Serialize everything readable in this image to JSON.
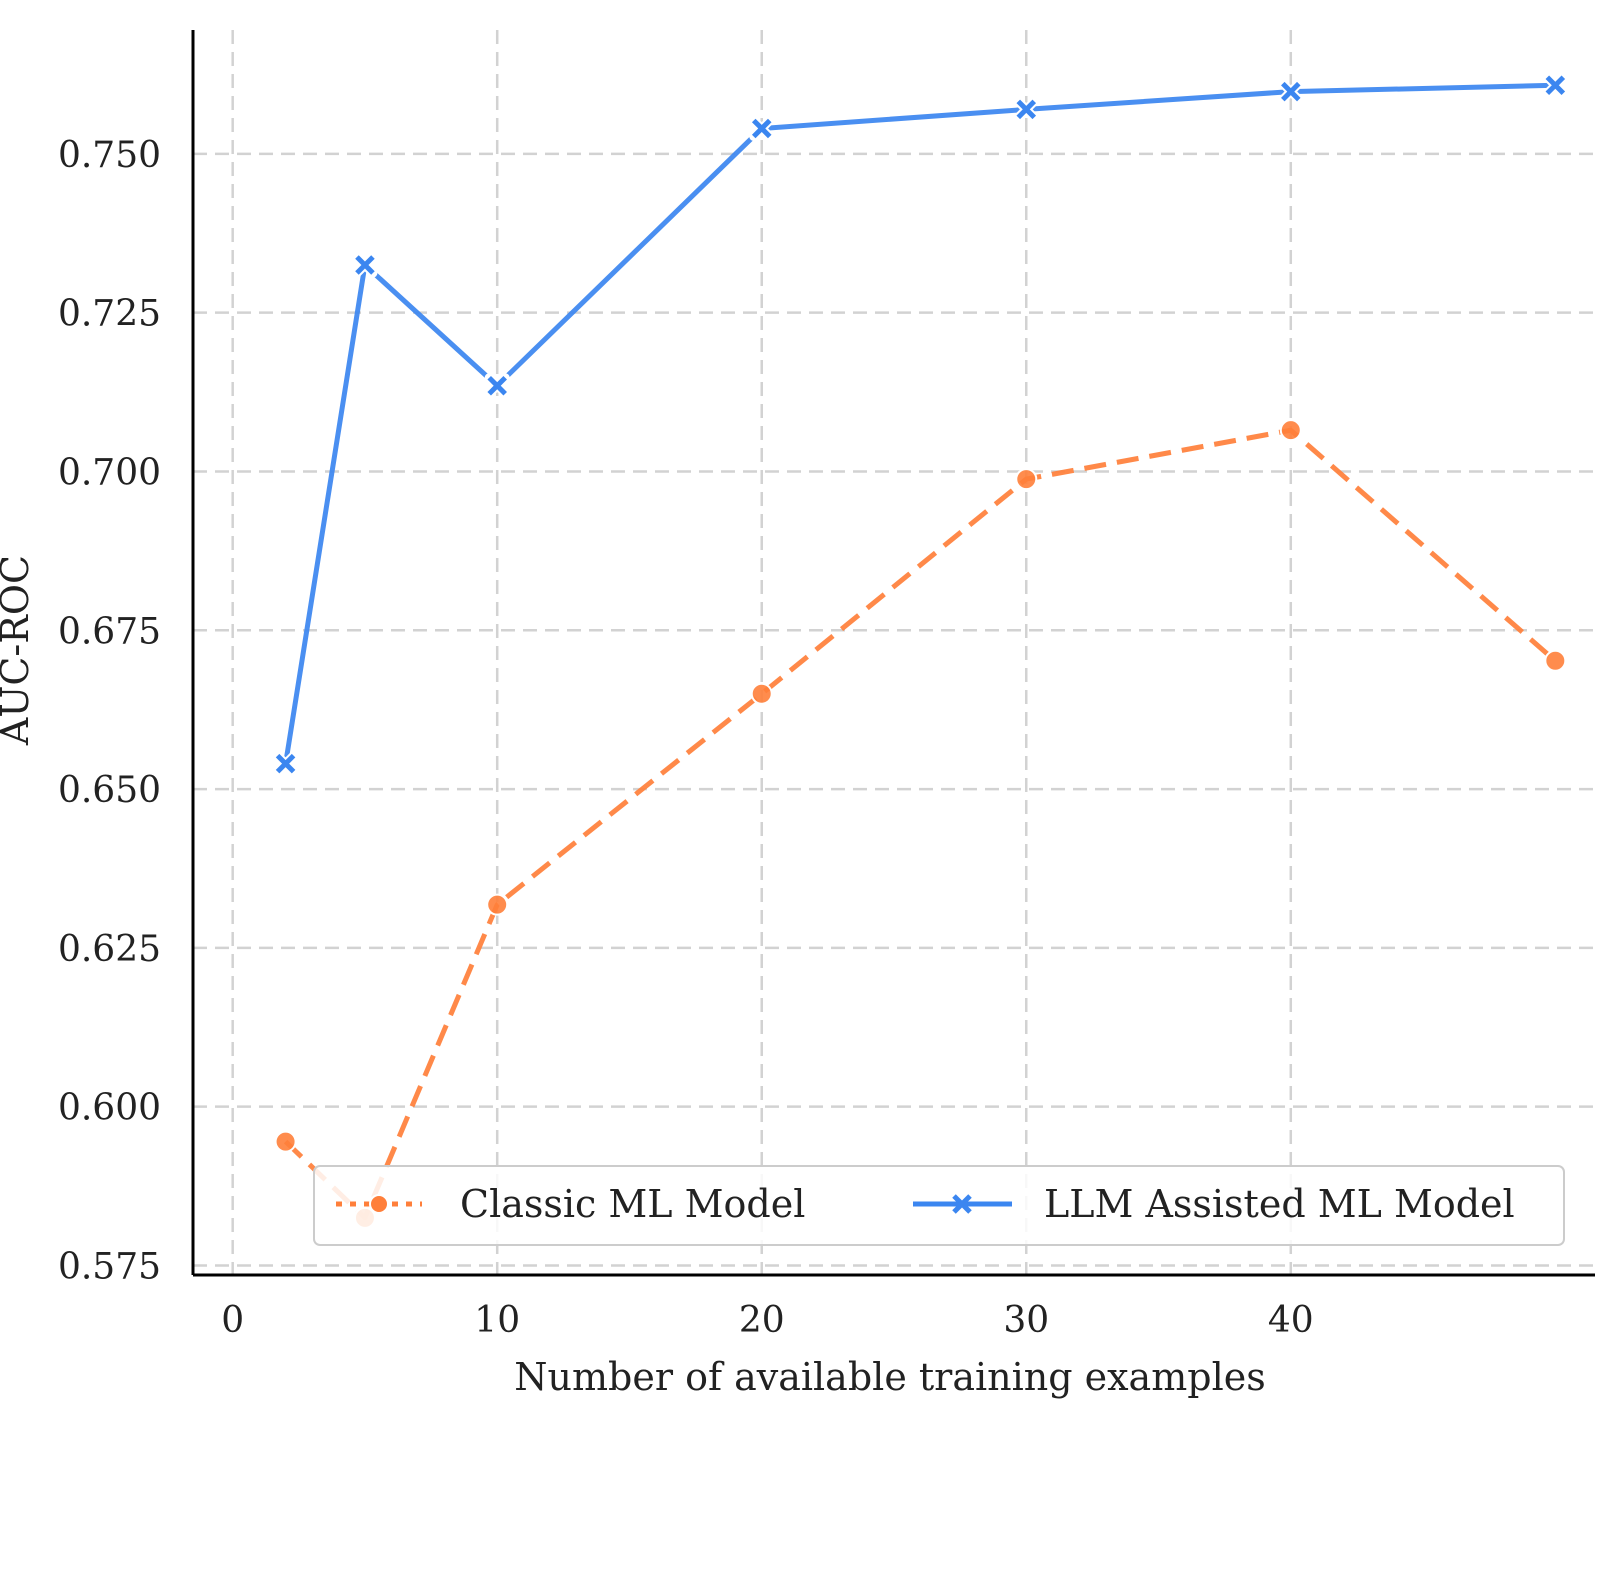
{
  "chart_data": {
    "type": "line",
    "xlabel": "Number of available training examples",
    "ylabel": "AUC-ROC",
    "xlim": [
      -1.5,
      51.5
    ],
    "ylim": [
      0.5735,
      0.7695
    ],
    "xticks": [
      0,
      10,
      20,
      30,
      40
    ],
    "yticks": [
      0.575,
      0.6,
      0.625,
      0.65,
      0.675,
      0.7,
      0.725,
      0.75
    ],
    "ytick_labels": [
      "0.575",
      "0.600",
      "0.625",
      "0.650",
      "0.675",
      "0.700",
      "0.725",
      "0.750"
    ],
    "xtick_labels": [
      "0",
      "10",
      "20",
      "30",
      "40"
    ],
    "grid": true,
    "legend_position": "bottom",
    "series": [
      {
        "name": "Classic ML Model",
        "color": "#ff7f3a",
        "line_style": "dashed",
        "marker": "circle",
        "x": [
          2,
          5,
          10,
          20,
          30,
          40,
          50
        ],
        "y": [
          0.5945,
          0.5825,
          0.6318,
          0.665,
          0.6988,
          0.7065,
          0.6702
        ]
      },
      {
        "name": "LLM Assisted ML Model",
        "color": "#3b86f0",
        "line_style": "solid",
        "marker": "x",
        "x": [
          2,
          5,
          10,
          20,
          30,
          40,
          50
        ],
        "y": [
          0.654,
          0.7325,
          0.7135,
          0.754,
          0.757,
          0.7598,
          0.7608
        ]
      }
    ]
  }
}
